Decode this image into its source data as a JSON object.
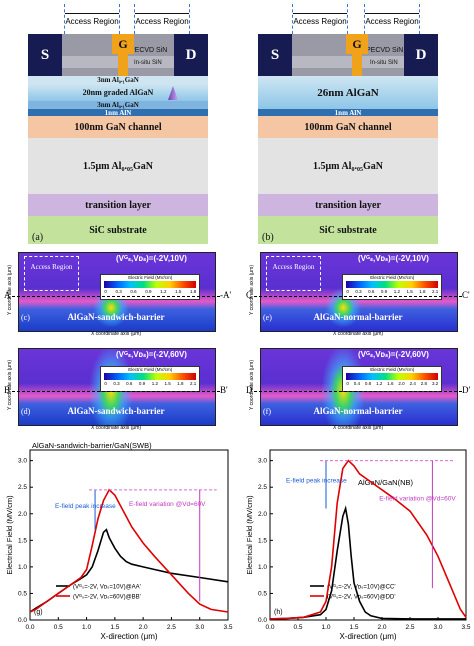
{
  "structure_a": {
    "label": "(a)",
    "source": "S",
    "drain": "D",
    "gate": "G",
    "access_region": "Access Region",
    "pecvd": "PECVD SiN",
    "insitu": "In-situ SiN",
    "layers": [
      "3nm Al₀.₁GaN",
      "20nm graded AlGaN",
      "3nm Al₀.₁GaN",
      "1nm AlN",
      "100nm GaN channel",
      "1.5μm Al₀.₀₅GaN",
      "transition layer",
      "SiC substrate"
    ]
  },
  "structure_b": {
    "label": "(b)",
    "source": "S",
    "drain": "D",
    "gate": "G",
    "access_region": "Access Region",
    "pecvd": "PECVD SiN",
    "insitu": "In-situ SiN",
    "layers": [
      "26nm AlGaN",
      "1nm AlN",
      "100nm GaN channel",
      "1.5μm Al₀.₀₅GaN",
      "transition layer",
      "SiC substrate"
    ]
  },
  "sims": [
    {
      "id": "c",
      "label": "(c)",
      "bias": "(Vᴳₛ,Vᴅₛ)=(-2V,10V)",
      "name": "AlGaN-sandwich-barrier",
      "cut_l": "A",
      "cut_r": "-A'",
      "access": "Access Region",
      "legend_title": "Electric Field (MV/cm)",
      "ticks": [
        "0",
        "0.3",
        "0.6",
        "0.9",
        "1.2",
        "1.5",
        "1.8"
      ]
    },
    {
      "id": "e",
      "label": "(e)",
      "bias": "(Vᴳₛ,Vᴅₛ)=(-2V,10V)",
      "name": "AlGaN-normal-barrier",
      "cut_l": "C",
      "cut_r": "C'",
      "access": "Access Region",
      "legend_title": "Electric Field (MV/cm)",
      "ticks": [
        "0",
        "0.3",
        "0.6",
        "0.9",
        "1.2",
        "1.5",
        "1.8",
        "2.1"
      ]
    },
    {
      "id": "d",
      "label": "(d)",
      "bias": "(Vᴳₛ,Vᴅₛ)=(-2V,60V)",
      "name": "AlGaN-sandwich-barrier",
      "cut_l": "B",
      "cut_r": "B'",
      "legend_title": "Electric Field (MV/cm)",
      "ticks": [
        "0",
        "0.3",
        "0.6",
        "0.9",
        "1.2",
        "1.5",
        "1.8",
        "2.1"
      ]
    },
    {
      "id": "f",
      "label": "(f)",
      "bias": "(Vᴳₛ,Vᴅₛ)=(-2V,60V)",
      "name": "AlGaN-normal-barrier",
      "cut_l": "D",
      "cut_r": "D'",
      "legend_title": "Electric Field (MV/cm)",
      "ticks": [
        "0",
        "0.4",
        "0.8",
        "1.2",
        "1.6",
        "2.0",
        "2.4",
        "2.8",
        "3.2"
      ]
    }
  ],
  "sim_axis_x": "X coordinate axis (μm)",
  "sim_axis_y": "Y coordinate axis (μm)",
  "chart_data": [
    {
      "type": "line",
      "panel": "(g)",
      "title": "AlGaN-sandwich-barrier/GaN(SWB)",
      "xlabel": "X-direction (μm)",
      "ylabel": "Electrical Field (MV/cm)",
      "xlim": [
        0,
        3.5
      ],
      "ylim": [
        0,
        3.2
      ],
      "xticks": [
        "0.0",
        "0.5",
        "1.0",
        "1.5",
        "2.0",
        "2.5",
        "3.0",
        "3.5"
      ],
      "yticks": [
        "0.0",
        "0.5",
        "1.0",
        "1.5",
        "2.0",
        "2.5",
        "3.0"
      ],
      "annotation_1": "E-field peak increase",
      "annotation_2": "E-field variation @Vd=60V",
      "series": [
        {
          "name": "(Vᴳₛ=-2V, Vᴅₛ=10V)@AA'",
          "color": "#000000",
          "x": [
            0,
            0.1,
            0.3,
            0.5,
            0.7,
            0.9,
            1.0,
            1.1,
            1.2,
            1.3,
            1.35,
            1.4,
            1.5,
            1.6,
            1.7,
            1.8,
            2.0,
            2.2,
            2.5,
            3.0,
            3.5
          ],
          "y": [
            0.15,
            0.22,
            0.35,
            0.5,
            0.65,
            0.78,
            0.85,
            1.0,
            1.3,
            1.65,
            1.7,
            1.55,
            1.35,
            1.2,
            1.1,
            1.05,
            1.0,
            0.95,
            0.88,
            0.8,
            0.72
          ]
        },
        {
          "name": "(Vᴳₛ=-2V, Vᴅₛ=60V)@BB'",
          "color": "#e00000",
          "x": [
            0,
            0.1,
            0.3,
            0.5,
            0.7,
            0.9,
            1.0,
            1.1,
            1.2,
            1.3,
            1.4,
            1.5,
            1.6,
            1.7,
            1.8,
            2.0,
            2.2,
            2.5,
            2.8,
            3.0,
            3.2,
            3.5
          ],
          "y": [
            0.15,
            0.2,
            0.35,
            0.5,
            0.65,
            0.8,
            0.95,
            1.4,
            1.9,
            2.25,
            2.45,
            2.35,
            2.15,
            1.95,
            1.75,
            1.45,
            1.2,
            0.85,
            0.5,
            0.3,
            0.2,
            0.15
          ]
        }
      ]
    },
    {
      "type": "line",
      "panel": "(h)",
      "title": "AlGaN/GaN(NB)",
      "xlabel": "X-direction (μm)",
      "ylabel": "Electrical Field (MV/cm)",
      "xlim": [
        0,
        3.5
      ],
      "ylim": [
        0,
        3.2
      ],
      "xticks": [
        "0.0",
        "0.5",
        "1.0",
        "1.5",
        "2.0",
        "2.5",
        "3.0",
        "3.5"
      ],
      "yticks": [
        "0.0",
        "0.5",
        "1.0",
        "1.5",
        "2.0",
        "2.5",
        "3.0"
      ],
      "annotation_1": "E-field peak increase",
      "annotation_2": "E-field variation @Vd=60V",
      "series": [
        {
          "name": "(Vᴳₛ=-2V, Vᴅₛ=10V)@CC'",
          "color": "#000000",
          "x": [
            0,
            0.3,
            0.6,
            0.9,
            1.0,
            1.1,
            1.2,
            1.3,
            1.35,
            1.4,
            1.45,
            1.5,
            1.6,
            1.7,
            1.8,
            2.0,
            2.5,
            3.0,
            3.5
          ],
          "y": [
            0.02,
            0.03,
            0.05,
            0.1,
            0.2,
            0.55,
            1.3,
            1.95,
            2.1,
            1.8,
            1.2,
            0.7,
            0.35,
            0.15,
            0.08,
            0.03,
            0.02,
            0.02,
            0.02
          ]
        },
        {
          "name": "(Vᴳₛ=-2V, Vᴅₛ=60V)@DD'",
          "color": "#e00000",
          "x": [
            0,
            0.3,
            0.6,
            0.9,
            1.0,
            1.1,
            1.2,
            1.3,
            1.4,
            1.5,
            1.6,
            1.8,
            2.0,
            2.2,
            2.5,
            2.8,
            3.0,
            3.2,
            3.4,
            3.5
          ],
          "y": [
            0.02,
            0.03,
            0.05,
            0.15,
            0.35,
            1.0,
            2.2,
            2.85,
            3.0,
            2.9,
            2.75,
            2.6,
            2.45,
            2.3,
            2.05,
            1.6,
            1.2,
            0.7,
            0.2,
            0.05
          ]
        }
      ]
    }
  ]
}
